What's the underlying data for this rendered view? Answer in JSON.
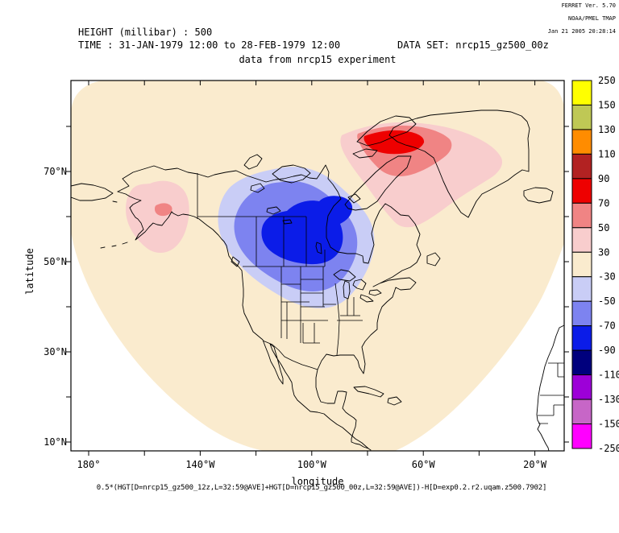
{
  "stamp": {
    "line1": "FERRET Ver. 5.70",
    "line2": "NOAA/PMEL TMAP",
    "line3": "Jan 21 2005 20:28:14"
  },
  "header": {
    "variable": "HEIGHT (millibar) : 500",
    "time": "TIME : 31-JAN-1979 12:00 to 28-FEB-1979 12:00",
    "dataset": "DATA SET: nrcp15_gz500_00z",
    "subtitle": "data from nrcp15 experiment"
  },
  "axes": {
    "x_label": "longitude",
    "y_label": "latitude",
    "lon_ticks": [
      {
        "deg": -180,
        "label": "180°"
      },
      {
        "deg": -160
      },
      {
        "deg": -140,
        "label": "140°W"
      },
      {
        "deg": -120
      },
      {
        "deg": -100,
        "label": "100°W"
      },
      {
        "deg": -80
      },
      {
        "deg": -60,
        "label": "60°W"
      },
      {
        "deg": -40
      },
      {
        "deg": -20,
        "label": "20°W"
      }
    ],
    "lat_ticks": [
      {
        "deg": 10,
        "label": "10°N"
      },
      {
        "deg": 20
      },
      {
        "deg": 30,
        "label": "30°N"
      },
      {
        "deg": 40
      },
      {
        "deg": 50,
        "label": "50°N"
      },
      {
        "deg": 60
      },
      {
        "deg": 70,
        "label": "70°N"
      },
      {
        "deg": 80
      }
    ]
  },
  "colorbar": {
    "boundary_labels": [
      "250",
      "150",
      "130",
      "110",
      "90",
      "70",
      "50",
      "30",
      "-30",
      "-50",
      "-70",
      "-90",
      "-110",
      "-130",
      "-150",
      "-250"
    ],
    "colors_top_to_bottom": [
      "#FFFF00",
      "#BFC855",
      "#FF8C00",
      "#B22222",
      "#EE0000",
      "#F08484",
      "#F8CDCD",
      "#FAEBCE",
      "#C9CDF6",
      "#7D83F0",
      "#0B1CE8",
      "#00007D",
      "#9D00D8",
      "#C766C7",
      "#FF00FF"
    ]
  },
  "footer": {
    "formula": "0.5*(HGT[D=nrcp15_gz500_12z,L=32:59@AVE]+HGT[D=nrcp15_gz500_00z,L=32:59@AVE])-H[D=exp0.2.r2.uqam.z500.7902]"
  },
  "chart_data": {
    "type": "filled_contour_map",
    "projection": "latitude-longitude",
    "region": "North America, Greenland, Iceland, west Africa edge",
    "variable": "HEIGHT (millibar) : 500",
    "subtitle": "data from nrcp15 experiment",
    "time_range": "31-JAN-1979 12:00 to 28-FEB-1979 12:00",
    "dataset": "nrcp15_gz500_00z",
    "xlabel": "longitude",
    "ylabel": "latitude",
    "lon_axis_range_deg_east": [
      -186,
      -9
    ],
    "lat_axis_range_deg_north": [
      8,
      90
    ],
    "contour_boundaries": [
      250,
      150,
      130,
      110,
      90,
      70,
      50,
      30,
      -30,
      -50,
      -70,
      -90,
      -110,
      -130,
      -150,
      -250
    ],
    "background_band": "-30 to 30 (cream) over bell-shaped model data domain, white outside domain",
    "anomalies": [
      {
        "name": "negative height anomaly",
        "location": "central Canada / Hudson Bay / Manitoba-Saskatchewan",
        "levels_shown": [
          "-30 to -50",
          "-50 to -70",
          "-70 to -90"
        ],
        "sign": "negative"
      },
      {
        "name": "positive height anomaly",
        "location": "Baffin Bay / northwest Greenland",
        "levels_shown": [
          "30 to 50",
          "50 to 70",
          "70 to 90"
        ],
        "sign": "positive"
      },
      {
        "name": "positive height anomaly",
        "location": "Alaska",
        "levels_shown": [
          "30 to 50",
          "50 to 70"
        ],
        "sign": "positive"
      }
    ],
    "map": {
      "domain_fill_cbi": 7,
      "legend_position": "right"
    }
  }
}
